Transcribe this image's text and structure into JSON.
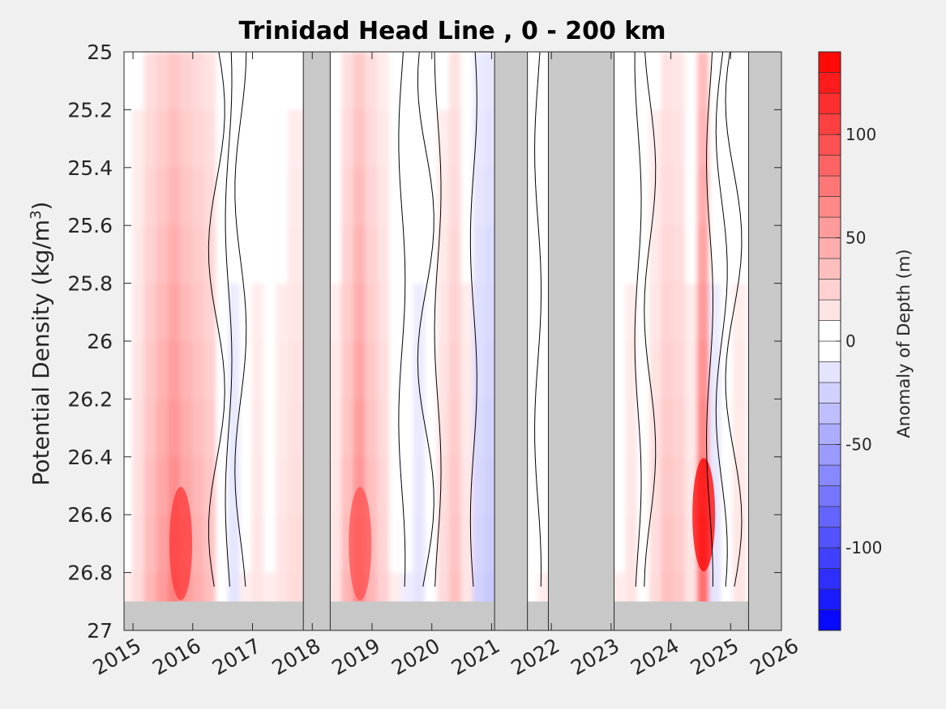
{
  "chart_data": {
    "type": "heatmap",
    "title": "Trinidad Head Line , 0 - 200 km",
    "xlabel": "",
    "ylabel": "Potential Density (kg/m³)",
    "ylabel_base": "Potential Density (kg/m",
    "ylabel_sup": "3",
    "ylabel_tail": ")",
    "xlim": [
      2014.85,
      2025.85
    ],
    "ylim": [
      25,
      27
    ],
    "y_reversed": true,
    "x_ticks": [
      2015,
      2016,
      2017,
      2018,
      2019,
      2020,
      2021,
      2022,
      2023,
      2024,
      2025,
      2026
    ],
    "x_tick_labels": [
      "2015",
      "2016",
      "2017",
      "2018",
      "2019",
      "2020",
      "2021",
      "2022",
      "2023",
      "2024",
      "2025",
      "2026"
    ],
    "y_ticks": [
      25,
      25.2,
      25.4,
      25.6,
      25.8,
      26,
      26.2,
      26.4,
      26.6,
      26.8,
      27
    ],
    "y_tick_labels": [
      "25",
      "25.2",
      "25.4",
      "25.6",
      "25.8",
      "26",
      "26.2",
      "26.4",
      "26.6",
      "26.8",
      "27"
    ],
    "colorbar": {
      "label": "Anomaly of Depth (m)",
      "range": [
        -140,
        140
      ],
      "step": 10,
      "ticks": [
        -100,
        -50,
        0,
        50,
        100
      ],
      "tick_labels": [
        "-100",
        "-50",
        "0",
        "50",
        "100"
      ],
      "colormap": "blue-white-red"
    },
    "no_data_color": "#c8c8c8",
    "no_data_spans": [
      {
        "x0": 2017.85,
        "x1": 2018.3
      },
      {
        "x0": 2021.05,
        "x1": 2021.6
      },
      {
        "x0": 2021.95,
        "x1": 2023.05
      },
      {
        "x0": 2025.3,
        "x1": 2025.85
      }
    ],
    "no_data_bottom_density": 26.9,
    "anomaly_columns": [
      {
        "x": 2014.9,
        "v": 10
      },
      {
        "x": 2015.1,
        "v": 20
      },
      {
        "x": 2015.3,
        "v": 40
      },
      {
        "x": 2015.5,
        "v": 55
      },
      {
        "x": 2015.7,
        "v": 70
      },
      {
        "x": 2015.9,
        "v": 55
      },
      {
        "x": 2016.1,
        "v": 45
      },
      {
        "x": 2016.3,
        "v": 35
      },
      {
        "x": 2016.5,
        "v": 5
      },
      {
        "x": 2016.7,
        "v": -15
      },
      {
        "x": 2016.9,
        "v": 10
      },
      {
        "x": 2017.1,
        "v": 15
      },
      {
        "x": 2017.3,
        "v": 10
      },
      {
        "x": 2017.5,
        "v": 15
      },
      {
        "x": 2017.7,
        "v": 20
      },
      {
        "x": 2018.4,
        "v": 15
      },
      {
        "x": 2018.6,
        "v": 40
      },
      {
        "x": 2018.8,
        "v": 65
      },
      {
        "x": 2019.0,
        "v": 40
      },
      {
        "x": 2019.2,
        "v": 25
      },
      {
        "x": 2019.4,
        "v": 10
      },
      {
        "x": 2019.6,
        "v": -10
      },
      {
        "x": 2019.8,
        "v": -15
      },
      {
        "x": 2020.0,
        "v": 5
      },
      {
        "x": 2020.2,
        "v": 20
      },
      {
        "x": 2020.4,
        "v": 35
      },
      {
        "x": 2020.6,
        "v": 15
      },
      {
        "x": 2020.8,
        "v": -25
      },
      {
        "x": 2021.0,
        "v": -30
      },
      {
        "x": 2021.7,
        "v": 5
      },
      {
        "x": 2021.85,
        "v": 10
      },
      {
        "x": 2023.15,
        "v": 10
      },
      {
        "x": 2023.35,
        "v": 15
      },
      {
        "x": 2023.55,
        "v": 5
      },
      {
        "x": 2023.75,
        "v": 20
      },
      {
        "x": 2023.95,
        "v": 35
      },
      {
        "x": 2024.15,
        "v": 30
      },
      {
        "x": 2024.35,
        "v": 15
      },
      {
        "x": 2024.55,
        "v": 80
      },
      {
        "x": 2024.75,
        "v": -15
      },
      {
        "x": 2024.95,
        "v": -5
      },
      {
        "x": 2025.15,
        "v": 15
      }
    ]
  }
}
